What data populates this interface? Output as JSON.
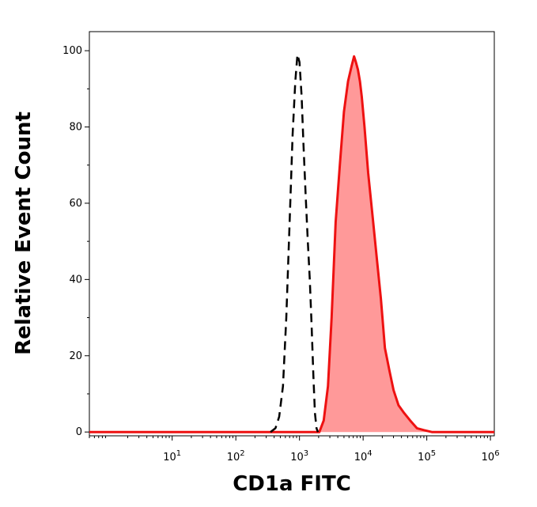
{
  "chart_data": {
    "type": "area",
    "xlabel": "CD1a FITC",
    "ylabel": "Relative Event Count",
    "x_scale": "log",
    "xlim": [
      0.5,
      1150000
    ],
    "ylim": [
      -1,
      105
    ],
    "x_ticks": [
      {
        "base": "10",
        "exp": "1",
        "value": 10
      },
      {
        "base": "10",
        "exp": "2",
        "value": 100
      },
      {
        "base": "10",
        "exp": "3",
        "value": 1000
      },
      {
        "base": "10",
        "exp": "4",
        "value": 10000
      },
      {
        "base": "10",
        "exp": "5",
        "value": 100000
      },
      {
        "base": "10",
        "exp": "6",
        "value": 1000000
      }
    ],
    "y_ticks": [
      {
        "label": "0",
        "value": 0
      },
      {
        "label": "20",
        "value": 20
      },
      {
        "label": "40",
        "value": 40
      },
      {
        "label": "60",
        "value": 60
      },
      {
        "label": "80",
        "value": 80
      },
      {
        "label": "100",
        "value": 100
      }
    ],
    "grid": false,
    "series": [
      {
        "style": "dashed",
        "color": "#000000",
        "filled": false,
        "points": [
          [
            350,
            0
          ],
          [
            420,
            1
          ],
          [
            480,
            4
          ],
          [
            550,
            12
          ],
          [
            620,
            30
          ],
          [
            700,
            55
          ],
          [
            780,
            78
          ],
          [
            860,
            92
          ],
          [
            930,
            99
          ],
          [
            1000,
            97
          ],
          [
            1080,
            88
          ],
          [
            1150,
            76
          ],
          [
            1250,
            62
          ],
          [
            1350,
            50
          ],
          [
            1450,
            40
          ],
          [
            1550,
            28
          ],
          [
            1650,
            15
          ],
          [
            1750,
            5
          ],
          [
            1850,
            1
          ],
          [
            1950,
            0
          ]
        ]
      },
      {
        "style": "solid",
        "color": "#ee1111",
        "fill": "#ff9999",
        "filled": true,
        "points": [
          [
            0.5,
            0
          ],
          [
            100,
            0
          ],
          [
            1000,
            0
          ],
          [
            2050,
            0
          ],
          [
            2400,
            3
          ],
          [
            2800,
            12
          ],
          [
            3200,
            30
          ],
          [
            3700,
            55
          ],
          [
            4300,
            70
          ],
          [
            5000,
            84
          ],
          [
            5800,
            92
          ],
          [
            6600,
            96
          ],
          [
            7200,
            98.5
          ],
          [
            7700,
            97
          ],
          [
            8300,
            95
          ],
          [
            8900,
            92
          ],
          [
            9500,
            88
          ],
          [
            10500,
            80
          ],
          [
            12000,
            68
          ],
          [
            14000,
            57
          ],
          [
            16500,
            45
          ],
          [
            19000,
            35
          ],
          [
            22000,
            22
          ],
          [
            26000,
            16
          ],
          [
            30000,
            11
          ],
          [
            36000,
            7
          ],
          [
            44000,
            5
          ],
          [
            55000,
            3
          ],
          [
            70000,
            1
          ],
          [
            90000,
            0.5
          ],
          [
            120000,
            0
          ],
          [
            1150000,
            0
          ]
        ]
      }
    ]
  }
}
